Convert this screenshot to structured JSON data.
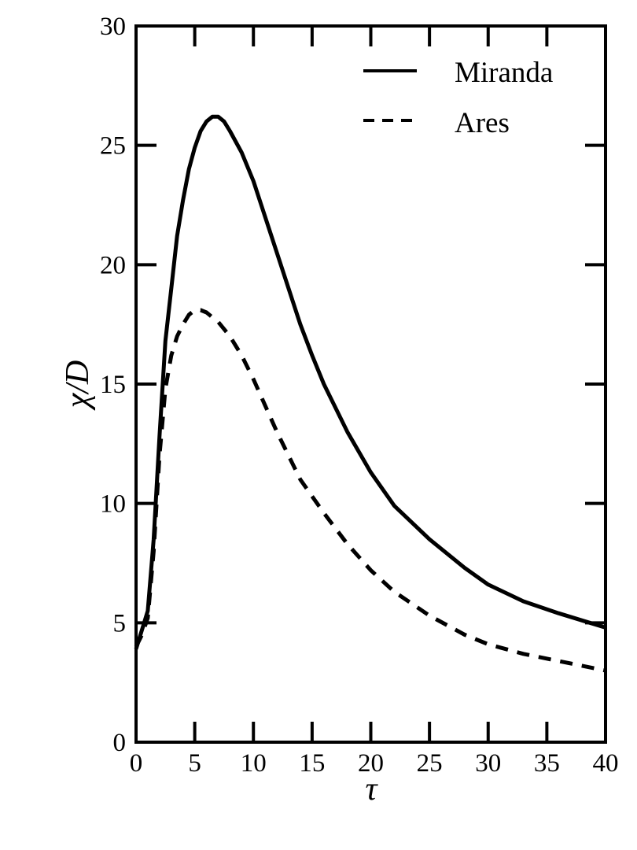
{
  "chart_data": {
    "type": "line",
    "xlabel": "τ",
    "ylabel": "χ/D",
    "xlim": [
      0,
      40
    ],
    "ylim": [
      0,
      30
    ],
    "xticks": [
      "0",
      "5",
      "10",
      "15",
      "20",
      "25",
      "30",
      "35",
      "40"
    ],
    "yticks": [
      "0",
      "5",
      "10",
      "15",
      "20",
      "25",
      "30"
    ],
    "grid": false,
    "legend_position": "top-right",
    "series": [
      {
        "name": "Miranda",
        "style": "solid",
        "x": [
          0,
          0.5,
          1,
          1.5,
          2,
          2.5,
          3,
          3.5,
          4,
          4.5,
          5,
          5.5,
          6,
          6.5,
          7,
          7.5,
          8,
          9,
          10,
          11,
          12,
          13,
          14,
          15,
          16,
          18,
          20,
          22,
          25,
          28,
          30,
          33,
          36,
          38,
          40
        ],
        "y": [
          3.9,
          4.7,
          5.5,
          8.5,
          12.8,
          16.8,
          19.0,
          21.2,
          22.7,
          24.0,
          24.9,
          25.6,
          26.0,
          26.2,
          26.2,
          26.0,
          25.6,
          24.7,
          23.5,
          22.0,
          20.5,
          19.0,
          17.5,
          16.2,
          15.0,
          13.0,
          11.3,
          9.9,
          8.5,
          7.3,
          6.6,
          5.9,
          5.4,
          5.1,
          4.8
        ]
      },
      {
        "name": "Ares",
        "style": "dashed",
        "x": [
          0,
          0.5,
          1,
          1.5,
          2,
          2.5,
          3,
          3.5,
          4,
          4.5,
          5,
          5.5,
          6,
          6.5,
          7,
          8,
          9,
          10,
          12,
          14,
          16,
          18,
          20,
          22,
          25,
          28,
          30,
          33,
          36,
          38,
          40
        ],
        "y": [
          4.0,
          4.5,
          5.2,
          8.0,
          12.0,
          14.8,
          16.2,
          17.0,
          17.5,
          17.9,
          18.1,
          18.1,
          18.0,
          17.8,
          17.6,
          17.0,
          16.2,
          15.2,
          13.0,
          11.0,
          9.6,
          8.3,
          7.2,
          6.3,
          5.3,
          4.5,
          4.1,
          3.7,
          3.4,
          3.2,
          3.0
        ]
      }
    ]
  }
}
